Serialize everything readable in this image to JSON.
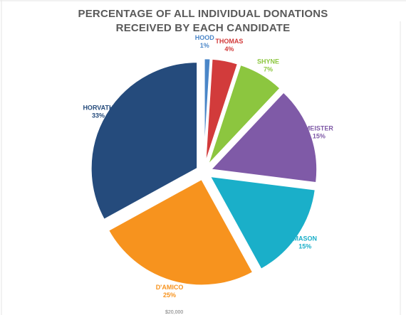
{
  "chart_data": {
    "type": "pie",
    "title_lines": [
      "PERCENTAGE OF ALL INDIVIDUAL DONATIONS",
      "RECEIVED BY EACH CANDIDATE"
    ],
    "slices": [
      {
        "name": "HOOD",
        "value": 1,
        "label": "1%",
        "color": "#4a86c8"
      },
      {
        "name": "THOMAS",
        "value": 4,
        "label": "4%",
        "color": "#d23b3b"
      },
      {
        "name": "SHYNE",
        "value": 7,
        "label": "7%",
        "color": "#8cc63f"
      },
      {
        "name": "MEISTER",
        "value": 15,
        "label": "15%",
        "color": "#7f5aa7"
      },
      {
        "name": "MASON",
        "value": 15,
        "label": "15%",
        "color": "#1aafc9"
      },
      {
        "name": "D'AMICO",
        "value": 25,
        "label": "25%",
        "color": "#f7931e"
      },
      {
        "name": "HORVATH",
        "value": 33,
        "label": "33%",
        "color": "#254b7c"
      }
    ]
  },
  "background_text": {
    "bottom_axis_fragment": "$20,000"
  }
}
